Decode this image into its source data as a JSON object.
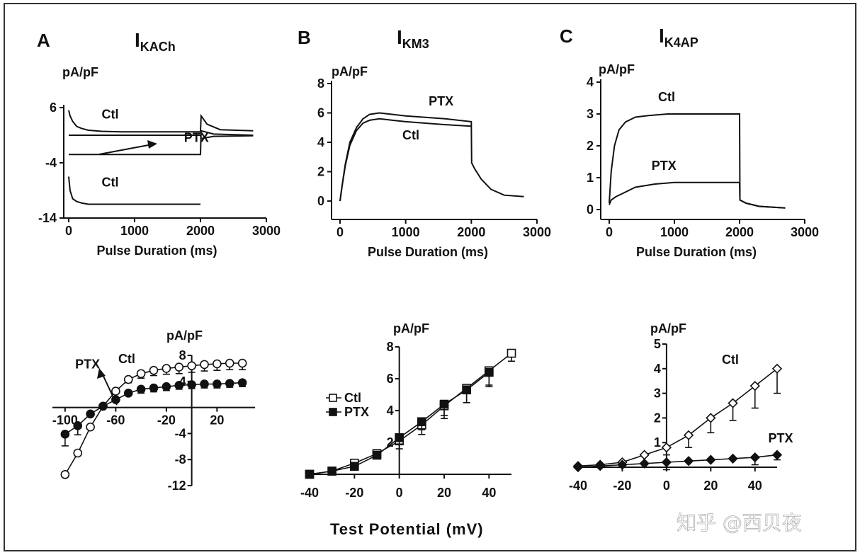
{
  "figure": {
    "watermark": "知乎 @西贝夜",
    "bottom_xlabel": "Test Potential (mV)"
  },
  "chart_data": [
    {
      "id": "A_top",
      "type": "line",
      "panel": "A",
      "title": "I",
      "title_subscript": "KACh",
      "ylabel": "pA/pF",
      "xlabel": "Pulse Duration (ms)",
      "xlim": [
        0,
        3000
      ],
      "ylim": [
        -14,
        6
      ],
      "xticks": [
        0,
        1000,
        2000,
        3000
      ],
      "yticks": [
        6,
        -4,
        -14
      ],
      "series": [
        {
          "name": "Ctl (upper)",
          "x": [
            0,
            20,
            60,
            120,
            200,
            300,
            500,
            800,
            1200,
            1600,
            2000,
            2010,
            2100,
            2300,
            2800
          ],
          "y": [
            5.5,
            4.5,
            3.5,
            2.6,
            2.2,
            1.9,
            1.7,
            1.6,
            1.6,
            1.6,
            1.6,
            4.5,
            3.0,
            2.0,
            1.8
          ]
        },
        {
          "name": "PTX (upper)",
          "x": [
            0,
            100,
            500,
            1000,
            1500,
            2000,
            2010,
            2200,
            2800
          ],
          "y": [
            1.0,
            1.0,
            1.0,
            1.0,
            1.0,
            1.0,
            0.4,
            0.8,
            0.9
          ]
        },
        {
          "name": "PTX (lower)",
          "x": [
            0,
            100,
            500,
            1000,
            1500,
            2000,
            2010,
            2200,
            2800
          ],
          "y": [
            -2.5,
            -2.5,
            -2.5,
            -2.5,
            -2.5,
            -2.5,
            1.8,
            1.2,
            1.0
          ]
        },
        {
          "name": "Ctl (lower)",
          "x": [
            0,
            20,
            60,
            120,
            200,
            300,
            500,
            800,
            1200,
            1600,
            2000
          ],
          "y": [
            -6.5,
            -9.0,
            -10.5,
            -11.0,
            -11.3,
            -11.5,
            -11.5,
            -11.5,
            -11.5,
            -11.5,
            -11.5
          ]
        }
      ],
      "annotations": [
        {
          "text": "Ctl",
          "x": 500,
          "y": 4.0
        },
        {
          "text": "PTX",
          "x": 1750,
          "y": -0.2
        },
        {
          "text": "Ctl",
          "x": 500,
          "y": -8.3
        }
      ]
    },
    {
      "id": "B_top",
      "type": "line",
      "panel": "B",
      "title": "I",
      "title_subscript": "KM3",
      "ylabel": "pA/pF",
      "xlabel": "Pulse Duration (ms)",
      "xlim": [
        0,
        3000
      ],
      "ylim": [
        0,
        8
      ],
      "xticks": [
        0,
        1000,
        2000,
        3000
      ],
      "yticks": [
        0,
        2,
        4,
        6,
        8
      ],
      "series": [
        {
          "name": "PTX",
          "x": [
            0,
            30,
            80,
            150,
            250,
            350,
            450,
            600,
            800,
            1000,
            1300,
            1600,
            2000,
            2005,
            2050,
            2150,
            2300,
            2500,
            2800
          ],
          "y": [
            0,
            1.0,
            2.5,
            4.0,
            5.0,
            5.6,
            5.9,
            6.0,
            5.9,
            5.8,
            5.7,
            5.6,
            5.4,
            2.6,
            2.2,
            1.5,
            0.8,
            0.4,
            0.3
          ]
        },
        {
          "name": "Ctl",
          "x": [
            0,
            30,
            80,
            150,
            250,
            350,
            450,
            600,
            800,
            1000,
            1300,
            1600,
            2000
          ],
          "y": [
            0,
            1.0,
            2.4,
            3.8,
            4.8,
            5.3,
            5.5,
            5.6,
            5.5,
            5.4,
            5.3,
            5.2,
            5.1
          ]
        }
      ],
      "annotations": [
        {
          "text": "PTX",
          "x": 1350,
          "y": 6.5
        },
        {
          "text": "Ctl",
          "x": 950,
          "y": 4.2
        }
      ]
    },
    {
      "id": "C_top",
      "type": "line",
      "panel": "C",
      "title": "I",
      "title_subscript": "K4AP",
      "ylabel": "pA/pF",
      "xlabel": "Pulse Duration (ms)",
      "xlim": [
        0,
        3000
      ],
      "ylim": [
        0,
        4
      ],
      "xticks": [
        0,
        1000,
        2000,
        3000
      ],
      "yticks": [
        0,
        1,
        2,
        3,
        4
      ],
      "series": [
        {
          "name": "Ctl",
          "x": [
            0,
            30,
            80,
            150,
            250,
            400,
            600,
            900,
            1200,
            1500,
            2000,
            2005,
            2100,
            2300,
            2700
          ],
          "y": [
            0.2,
            1.2,
            2.0,
            2.5,
            2.75,
            2.9,
            2.95,
            3.0,
            3.0,
            3.0,
            3.0,
            0.3,
            0.2,
            0.1,
            0.05
          ]
        },
        {
          "name": "PTX",
          "x": [
            0,
            30,
            100,
            200,
            400,
            700,
            1000,
            1300,
            1600,
            2000,
            2005,
            2100,
            2300,
            2700
          ],
          "y": [
            0.15,
            0.3,
            0.4,
            0.5,
            0.7,
            0.8,
            0.85,
            0.85,
            0.85,
            0.85,
            0.3,
            0.2,
            0.1,
            0.05
          ]
        }
      ],
      "annotations": [
        {
          "text": "Ctl",
          "x": 750,
          "y": 3.4
        },
        {
          "text": "PTX",
          "x": 650,
          "y": 1.25
        }
      ]
    },
    {
      "id": "A_bottom",
      "type": "line",
      "panel": "A",
      "ylabel": "pA/pF",
      "xlabel": "Test Potential (mV)",
      "xlim": [
        -110,
        50
      ],
      "ylim": [
        -12,
        8
      ],
      "xticks": [
        -100,
        -60,
        -20,
        20
      ],
      "yticks": [
        8,
        4,
        -4,
        -8,
        -12
      ],
      "series": [
        {
          "name": "Ctl",
          "marker": "open-circle",
          "x": [
            -100,
            -90,
            -80,
            -70,
            -60,
            -50,
            -40,
            -30,
            -20,
            -10,
            0,
            10,
            20,
            30,
            40
          ],
          "y": [
            -10.3,
            -7.0,
            -3.0,
            0.2,
            2.5,
            4.3,
            5.2,
            5.7,
            6.0,
            6.2,
            6.4,
            6.6,
            6.7,
            6.8,
            6.8
          ],
          "err": [
            0,
            0.4,
            0,
            0,
            0,
            0.5,
            0.7,
            0.8,
            0.9,
            1.0,
            1.0,
            1.0,
            1.0,
            1.0,
            1.0
          ]
        },
        {
          "name": "PTX",
          "marker": "filled-circle",
          "x": [
            -100,
            -90,
            -80,
            -70,
            -60,
            -50,
            -40,
            -30,
            -20,
            -10,
            0,
            10,
            20,
            30,
            40
          ],
          "y": [
            -4.1,
            -2.8,
            -1.0,
            0.2,
            1.2,
            2.2,
            2.8,
            3.0,
            3.2,
            3.4,
            3.5,
            3.6,
            3.6,
            3.7,
            3.8
          ],
          "err": [
            1.8,
            1.4,
            0,
            0,
            0,
            0,
            0.6,
            0.6,
            0.6,
            0.6,
            0.6,
            0.6,
            0.6,
            0.6,
            0.6
          ]
        }
      ],
      "annotations": [
        {
          "text": "Ctl",
          "x": -58,
          "y": 6.8
        },
        {
          "text": "PTX",
          "x": -92,
          "y": 6.0
        }
      ]
    },
    {
      "id": "B_bottom",
      "type": "line",
      "panel": "B",
      "ylabel": "pA/pF",
      "xlabel": "Test Potential (mV)",
      "xlim": [
        -40,
        50
      ],
      "ylim": [
        0,
        8
      ],
      "xticks": [
        -40,
        -20,
        0,
        20,
        40
      ],
      "yticks": [
        2,
        4,
        6,
        8
      ],
      "legend": [
        {
          "label": "Ctl",
          "marker": "open-square"
        },
        {
          "label": "PTX",
          "marker": "filled-square"
        }
      ],
      "legend_position": "left",
      "series": [
        {
          "name": "Ctl",
          "marker": "open-square",
          "x": [
            -40,
            -30,
            -20,
            -10,
            0,
            10,
            20,
            30,
            40,
            50
          ],
          "y": [
            0.0,
            0.2,
            0.7,
            1.3,
            2.1,
            3.1,
            4.3,
            5.4,
            6.5,
            7.6
          ],
          "err": [
            0,
            0,
            0,
            0,
            0.5,
            0.6,
            0.8,
            0.9,
            1.0,
            0.5
          ]
        },
        {
          "name": "PTX",
          "marker": "filled-square",
          "x": [
            -40,
            -30,
            -20,
            -10,
            0,
            10,
            20,
            30,
            40
          ],
          "y": [
            0.0,
            0.2,
            0.5,
            1.2,
            2.3,
            3.3,
            4.4,
            5.3,
            6.4
          ],
          "err": [
            0,
            0,
            0,
            0,
            0.4,
            0.5,
            0.7,
            0.8,
            0.8
          ]
        }
      ]
    },
    {
      "id": "C_bottom",
      "type": "line",
      "panel": "C",
      "ylabel": "pA/pF",
      "xlabel": "Test Potential (mV)",
      "xlim": [
        -40,
        50
      ],
      "ylim": [
        0,
        5
      ],
      "xticks": [
        -40,
        -20,
        0,
        20,
        40
      ],
      "yticks": [
        1,
        2,
        3,
        4,
        5
      ],
      "series": [
        {
          "name": "Ctl",
          "marker": "open-diamond",
          "x": [
            -40,
            -30,
            -20,
            -10,
            0,
            10,
            20,
            30,
            40,
            50
          ],
          "y": [
            0.05,
            0.1,
            0.2,
            0.5,
            0.8,
            1.3,
            2.0,
            2.6,
            3.3,
            4.0
          ],
          "err": [
            0,
            0,
            0,
            0,
            0.3,
            0.5,
            0.6,
            0.7,
            0.9,
            1.0
          ]
        },
        {
          "name": "PTX",
          "marker": "filled-diamond",
          "x": [
            -40,
            -30,
            -20,
            -10,
            0,
            10,
            20,
            30,
            40,
            50
          ],
          "y": [
            0.0,
            0.05,
            0.1,
            0.15,
            0.2,
            0.25,
            0.3,
            0.35,
            0.4,
            0.5
          ],
          "err": [
            0,
            0,
            0,
            0,
            0.3,
            0,
            0,
            0,
            0.3,
            0.2
          ]
        }
      ],
      "annotations": [
        {
          "text": "Ctl",
          "x": 25,
          "y": 4.2
        },
        {
          "text": "PTX",
          "x": 46,
          "y": 1.0
        }
      ]
    }
  ]
}
